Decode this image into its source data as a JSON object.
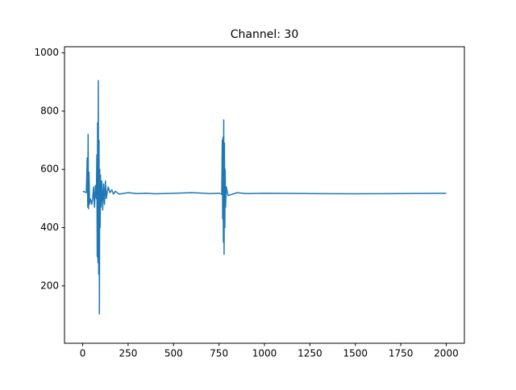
{
  "chart_data": {
    "type": "line",
    "title": "Channel: 30",
    "x": [
      0,
      10,
      20,
      25,
      28,
      30,
      32,
      35,
      38,
      40,
      45,
      50,
      55,
      60,
      65,
      70,
      75,
      78,
      80,
      82,
      84,
      86,
      88,
      90,
      92,
      94,
      96,
      98,
      100,
      105,
      110,
      115,
      120,
      125,
      130,
      140,
      150,
      160,
      170,
      180,
      200,
      250,
      300,
      350,
      400,
      500,
      600,
      700,
      750,
      765,
      768,
      770,
      772,
      774,
      776,
      778,
      780,
      782,
      784,
      786,
      790,
      800,
      850,
      900,
      1000,
      1250,
      1500,
      1750,
      2000
    ],
    "series": [
      {
        "color": "#1f77b4",
        "values": [
          525,
          523,
          520,
          640,
          470,
          720,
          465,
          590,
          480,
          500,
          495,
          480,
          500,
          540,
          470,
          545,
          500,
          650,
          300,
          760,
          280,
          905,
          240,
          700,
          104,
          600,
          400,
          580,
          470,
          560,
          460,
          550,
          480,
          560,
          500,
          540,
          520,
          530,
          515,
          525,
          515,
          520,
          517,
          518,
          516,
          518,
          520,
          517,
          518,
          515,
          700,
          430,
          710,
          350,
          770,
          308,
          690,
          400,
          600,
          470,
          540,
          510,
          520,
          517,
          518,
          517,
          516,
          517,
          518
        ]
      }
    ],
    "xlim": [
      -100,
      2100
    ],
    "ylim": [
      3,
      1021
    ],
    "xticks": [
      0,
      250,
      500,
      750,
      1000,
      1250,
      1500,
      1750,
      2000
    ],
    "yticks": [
      200,
      400,
      600,
      800,
      1000
    ]
  }
}
